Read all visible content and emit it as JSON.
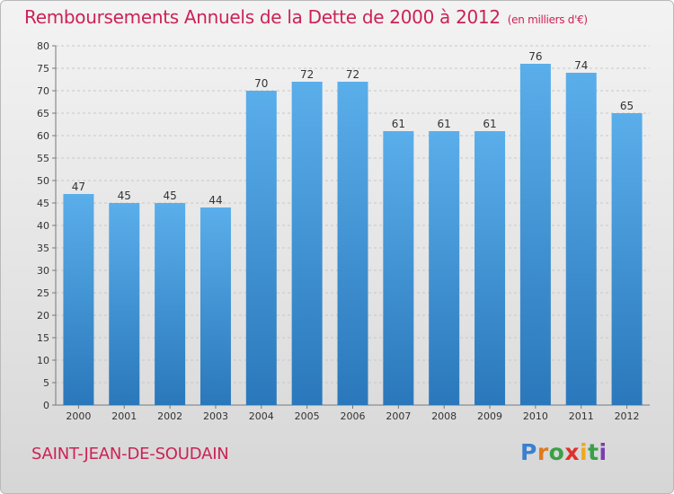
{
  "header": {
    "title": "Remboursements Annuels de la Dette de 2000 à 2012",
    "unit": "(en milliers d'€)"
  },
  "footer": {
    "commune": "SAINT-JEAN-DE-SOUDAIN",
    "logo_text": "Proxiti"
  },
  "colors": {
    "title": "#cc2255",
    "bar_top": "#5aaeea",
    "bar_bottom": "#2a78bb",
    "grid": "#c8c8c8"
  },
  "chart_data": {
    "type": "bar",
    "title": "Remboursements Annuels de la Dette de 2000 à 2012",
    "xlabel": "",
    "ylabel": "",
    "categories": [
      "2000",
      "2001",
      "2002",
      "2003",
      "2004",
      "2005",
      "2006",
      "2007",
      "2008",
      "2009",
      "2010",
      "2011",
      "2012"
    ],
    "values": [
      47,
      45,
      45,
      44,
      70,
      72,
      72,
      61,
      61,
      61,
      76,
      74,
      65
    ],
    "ylim": [
      0,
      80
    ],
    "yticks": [
      0,
      5,
      10,
      15,
      20,
      25,
      30,
      35,
      40,
      45,
      50,
      55,
      60,
      65,
      70,
      75,
      80
    ],
    "grid": "horizontal dashed",
    "legend": "none"
  }
}
